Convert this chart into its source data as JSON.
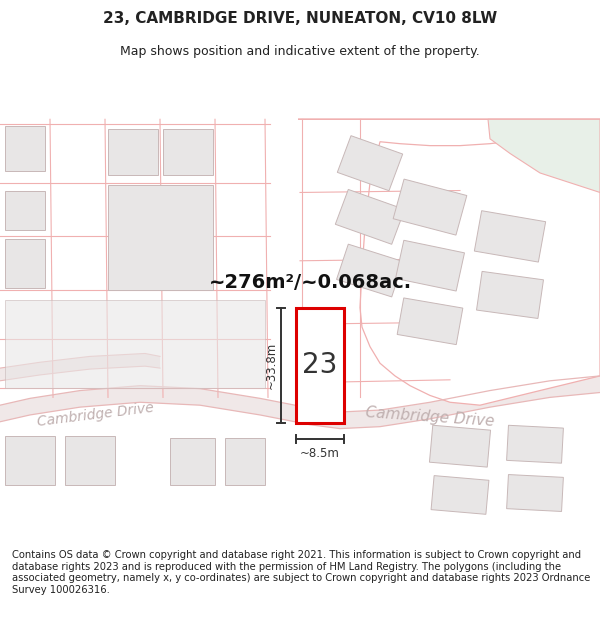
{
  "title": "23, CAMBRIDGE DRIVE, NUNEATON, CV10 8LW",
  "subtitle": "Map shows position and indicative extent of the property.",
  "area_text": "~276m²/~0.068ac.",
  "width_text": "~8.5m",
  "height_text": "~33.8m",
  "property_number": "23",
  "footer_text": "Contains OS data © Crown copyright and database right 2021. This information is subject to Crown copyright and database rights 2023 and is reproduced with the permission of HM Land Registry. The polygons (including the associated geometry, namely x, y co-ordinates) are subject to Crown copyright and database rights 2023 Ordnance Survey 100026316.",
  "map_bg": "#faf7f7",
  "road_fill": "#f0e8e8",
  "road_line": "#e8b8b8",
  "plot_red": "#dd0000",
  "plot_fill": "#ffffff",
  "bldg_fill": "#e8e6e6",
  "bldg_line": "#c8b8b8",
  "zone_line": "#f0b0b0",
  "zone_fill": "#ffffff",
  "road_label": "#c0b0b0",
  "dim_color": "#333333",
  "text_color": "#111111",
  "green_fill": "#e8f0e8",
  "title_fontsize": 11,
  "subtitle_fontsize": 9,
  "footer_fontsize": 7.2,
  "figsize": [
    6.0,
    6.25
  ],
  "dpi": 100
}
